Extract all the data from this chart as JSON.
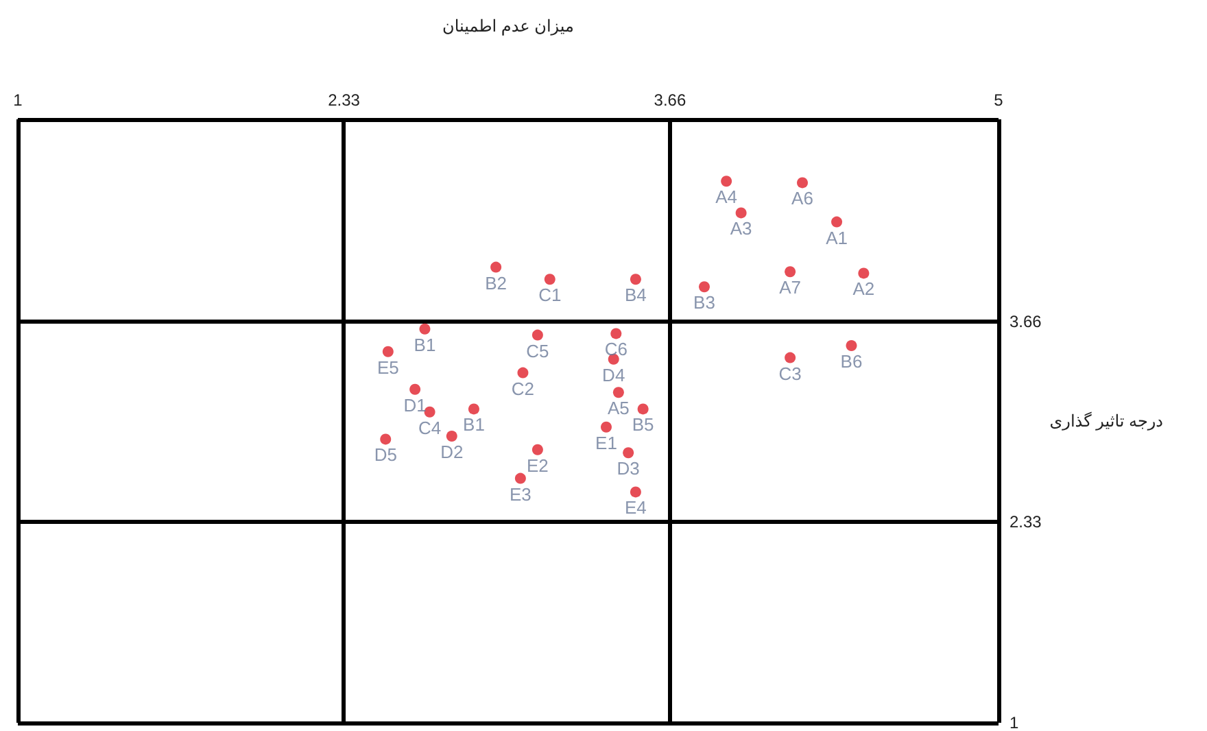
{
  "chart_data": {
    "type": "scatter",
    "xlabel": "میزان عدم اطمینان",
    "ylabel": "درجه تاثیر گذاری",
    "x": [
      3.89,
      4.2,
      3.95,
      4.34,
      4.15,
      4.45,
      3.8,
      2.95,
      3.17,
      3.52,
      2.66,
      3.12,
      3.44,
      2.51,
      3.43,
      3.06,
      2.62,
      2.68,
      3.45,
      3.55,
      2.86,
      3.4,
      2.5,
      2.77,
      3.12,
      3.49,
      3.05,
      3.52,
      4.15,
      4.4
    ],
    "series": [
      {
        "color": "#e0202c",
        "values": [
          4.59,
          4.58,
          4.38,
          4.32,
          3.99,
          3.98,
          3.89,
          4.02,
          3.94,
          3.94,
          3.61,
          3.57,
          3.58,
          3.46,
          3.41,
          3.32,
          3.21,
          3.06,
          3.19,
          3.08,
          3.08,
          2.96,
          2.88,
          2.9,
          2.81,
          2.79,
          2.62,
          2.53,
          3.42,
          3.5
        ],
        "value_labels": [
          "A4",
          "A6",
          "A3",
          "A1",
          "A7",
          "A2",
          "B3",
          "B2",
          "C1",
          "B4",
          "B1",
          "C5",
          "C6",
          "E5",
          "D4",
          "C2",
          "D1",
          "C4",
          "A5",
          "B5",
          "B1",
          "E1",
          "D5",
          "D2",
          "E2",
          "D3",
          "E3",
          "E4",
          "C3",
          "B6"
        ]
      }
    ],
    "xlim": [
      1,
      5
    ],
    "xticks": [
      1,
      2.33,
      3.66,
      5
    ],
    "ylim": [
      1,
      5
    ],
    "yticks": [
      1,
      2.33,
      3.66,
      {
        "value": 5,
        "label": null
      }
    ],
    "grid": true,
    "marker": "circle"
  }
}
